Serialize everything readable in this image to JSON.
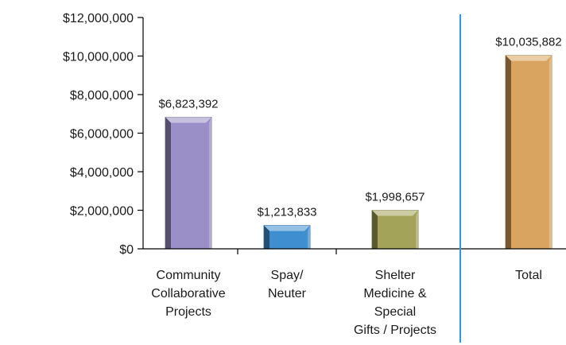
{
  "chart_data": {
    "type": "bar",
    "title": "",
    "xlabel": "",
    "ylabel": "",
    "ylim": [
      0,
      12000000
    ],
    "yticks": [
      0,
      2000000,
      4000000,
      6000000,
      8000000,
      10000000,
      12000000
    ],
    "ytick_labels": [
      "$0",
      "$2,000,000",
      "$4,000,000",
      "$6,000,000",
      "$8,000,000",
      "$10,000,000",
      "$12,000,000"
    ],
    "grid": false,
    "legend": "none",
    "separator_between": [
      "Shelter Medicine & Special Gifts / Projects",
      "Total"
    ],
    "separator_color": "#2e9bd6",
    "categories": [
      "Community Collaborative Projects",
      "Spay/ Neuter",
      "Shelter Medicine & Special Gifts / Projects",
      "Total"
    ],
    "category_lines": [
      [
        "Community",
        "Collaborative",
        "Projects"
      ],
      [
        "Spay/",
        "Neuter"
      ],
      [
        "Shelter",
        "Medicine &",
        "Special",
        "Gifts / Projects"
      ],
      [
        "Total"
      ]
    ],
    "values": [
      6823392,
      1213833,
      1998657,
      10035882
    ],
    "data_labels": [
      "$6,823,392",
      "$1,213,833",
      "$1,998,657",
      "$10,035,882"
    ],
    "colors": [
      "#9a8fc7",
      "#3f8fd0",
      "#a3a35a",
      "#d9a45f"
    ]
  }
}
